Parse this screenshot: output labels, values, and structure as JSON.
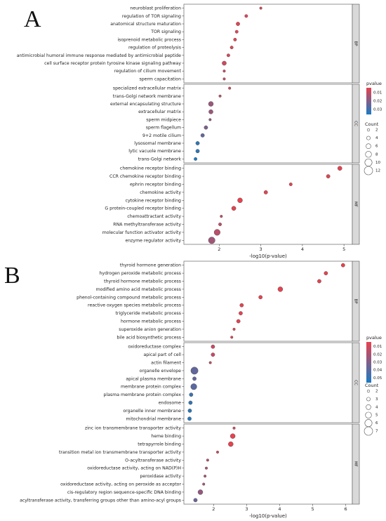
{
  "colors": {
    "low_p": "#e8414f",
    "high_p": "#1a7bc4",
    "strip_bg": "#d9d9d9",
    "dot_edge": "#555555"
  },
  "chart_data": [
    {
      "type": "scatter",
      "panel_label": "A",
      "xlabel": "-log10(p-value)",
      "x_ticks": [
        2,
        3,
        4,
        5
      ],
      "x_range": [
        1.15,
        5.2
      ],
      "legend": {
        "pvalue_title": "pvalue",
        "pvalue_ticks": [
          "0.01",
          "0.02",
          "0.03"
        ],
        "pvalue_range": [
          0.004,
          0.036
        ],
        "count_title": "Count",
        "count_values": [
          2,
          4,
          6,
          8,
          10,
          12
        ]
      },
      "facets": [
        {
          "label": "BP",
          "points": [
            {
              "term": "neuroblast proliferation",
              "x": 3.0,
              "count": 2,
              "p": 0.001
            },
            {
              "term": "regulation of TOR signaling",
              "x": 2.65,
              "count": 3,
              "p": 0.002
            },
            {
              "term": "anatomical structure maturation",
              "x": 2.45,
              "count": 4,
              "p": 0.004
            },
            {
              "term": "TOR signaling",
              "x": 2.42,
              "count": 3,
              "p": 0.004
            },
            {
              "term": "isoprenoid metabolic process",
              "x": 2.38,
              "count": 3,
              "p": 0.004
            },
            {
              "term": "regulation of proteolysis",
              "x": 2.3,
              "count": 3,
              "p": 0.005
            },
            {
              "term": "antimicrobial humoral immune response mediated by antimicrobial peptide",
              "x": 2.22,
              "count": 3,
              "p": 0.006
            },
            {
              "term": "cell surface receptor protein tyrosine kinase signaling pathway",
              "x": 2.12,
              "count": 5,
              "p": 0.0075
            },
            {
              "term": "regulation of cilium movement",
              "x": 2.12,
              "count": 2,
              "p": 0.0075
            },
            {
              "term": "sperm capacitation",
              "x": 2.12,
              "count": 2,
              "p": 0.0075
            }
          ]
        },
        {
          "label": "CC",
          "points": [
            {
              "term": "specialized extracellular matrix",
              "x": 2.25,
              "count": 2,
              "p": 0.0055
            },
            {
              "term": "trans-Golgi network membrane",
              "x": 2.02,
              "count": 2,
              "p": 0.0095
            },
            {
              "term": "external encapsulating structure",
              "x": 1.8,
              "count": 6,
              "p": 0.016
            },
            {
              "term": "extracellular matrix",
              "x": 1.8,
              "count": 5,
              "p": 0.016
            },
            {
              "term": "sperm midpiece",
              "x": 1.78,
              "count": 2,
              "p": 0.017
            },
            {
              "term": "sperm flagellum",
              "x": 1.68,
              "count": 4,
              "p": 0.021
            },
            {
              "term": "9+2 motile cilium",
              "x": 1.6,
              "count": 4,
              "p": 0.025
            },
            {
              "term": "lysosomal membrane",
              "x": 1.48,
              "count": 4,
              "p": 0.033
            },
            {
              "term": "lytic vacuole membrane",
              "x": 1.48,
              "count": 4,
              "p": 0.033
            },
            {
              "term": "trans-Golgi network",
              "x": 1.43,
              "count": 3,
              "p": 0.037
            }
          ]
        },
        {
          "label": "MF",
          "points": [
            {
              "term": "chemokine receptor binding",
              "x": 4.9,
              "count": 5,
              "p": 1e-05
            },
            {
              "term": "CCR chemokine receptor binding",
              "x": 4.62,
              "count": 4,
              "p": 2e-05
            },
            {
              "term": "ephrin receptor binding",
              "x": 3.72,
              "count": 3,
              "p": 0.0002
            },
            {
              "term": "chemokine activity",
              "x": 3.12,
              "count": 4,
              "p": 0.0008
            },
            {
              "term": "cytokine receptor binding",
              "x": 2.5,
              "count": 6,
              "p": 0.003
            },
            {
              "term": "G protein-coupled receptor binding",
              "x": 2.35,
              "count": 5,
              "p": 0.0045
            },
            {
              "term": "chemoattractant activity",
              "x": 2.05,
              "count": 2,
              "p": 0.009
            },
            {
              "term": "RNA methyltransferase activity",
              "x": 2.02,
              "count": 3,
              "p": 0.0095
            },
            {
              "term": "molecular function activator activity",
              "x": 1.95,
              "count": 8,
              "p": 0.011
            },
            {
              "term": "enzyme regulator activity",
              "x": 1.82,
              "count": 9,
              "p": 0.015
            }
          ]
        }
      ]
    },
    {
      "type": "scatter",
      "panel_label": "B",
      "xlabel": "-log10(p-value)",
      "x_ticks": [
        2,
        3,
        4,
        5,
        6
      ],
      "x_range": [
        1.1,
        6.2
      ],
      "legend": {
        "pvalue_title": "pvalue",
        "pvalue_ticks": [
          "0.01",
          "0.02",
          "0.03",
          "0.04",
          "0.05"
        ],
        "pvalue_range": [
          0.004,
          0.056
        ],
        "count_title": "Count",
        "count_values": [
          2,
          3,
          4,
          5,
          6,
          7
        ]
      },
      "facets": [
        {
          "label": "BP",
          "points": [
            {
              "term": "thyroid hormone generation",
              "x": 5.92,
              "count": 3,
              "p": 1e-06
            },
            {
              "term": "hydrogen peroxide metabolic process",
              "x": 5.4,
              "count": 3,
              "p": 4e-06
            },
            {
              "term": "thyroid hormone metabolic process",
              "x": 5.2,
              "count": 3,
              "p": 6e-06
            },
            {
              "term": "modified amino acid metabolic process",
              "x": 4.02,
              "count": 4,
              "p": 0.0001
            },
            {
              "term": "phenol-containing compound metabolic process",
              "x": 3.42,
              "count": 3,
              "p": 0.0004
            },
            {
              "term": "reactive oxygen species metabolic process",
              "x": 2.85,
              "count": 3,
              "p": 0.0014
            },
            {
              "term": "triglyceride metabolic process",
              "x": 2.82,
              "count": 3,
              "p": 0.0015
            },
            {
              "term": "hormone metabolic process",
              "x": 2.75,
              "count": 3,
              "p": 0.0018
            },
            {
              "term": "superoxide anion generation",
              "x": 2.62,
              "count": 2,
              "p": 0.0024
            },
            {
              "term": "bile acid biosynthetic process",
              "x": 2.55,
              "count": 2,
              "p": 0.0028
            }
          ]
        },
        {
          "label": "CC",
          "points": [
            {
              "term": "oxidoreductase complex",
              "x": 1.98,
              "count": 3,
              "p": 0.0105
            },
            {
              "term": "apical part of cell",
              "x": 1.98,
              "count": 3,
              "p": 0.0105
            },
            {
              "term": "actin filament",
              "x": 1.9,
              "count": 2,
              "p": 0.0125
            },
            {
              "term": "organelle envelope",
              "x": 1.42,
              "count": 6,
              "p": 0.038
            },
            {
              "term": "apical plasma membrane",
              "x": 1.42,
              "count": 3,
              "p": 0.038
            },
            {
              "term": "membrane protein complex",
              "x": 1.4,
              "count": 5,
              "p": 0.04
            },
            {
              "term": "plasma membrane protein complex",
              "x": 1.32,
              "count": 3,
              "p": 0.048
            },
            {
              "term": "endosome",
              "x": 1.3,
              "count": 3,
              "p": 0.05
            },
            {
              "term": "organelle inner membrane",
              "x": 1.28,
              "count": 3,
              "p": 0.052
            },
            {
              "term": "mitochondrial membrane",
              "x": 1.27,
              "count": 3,
              "p": 0.054
            }
          ]
        },
        {
          "label": "MF",
          "points": [
            {
              "term": "zinc ion transmembrane transporter activity",
              "x": 2.62,
              "count": 2,
              "p": 0.0024
            },
            {
              "term": "heme binding",
              "x": 2.58,
              "count": 4,
              "p": 0.0026
            },
            {
              "term": "tetrapyrrole binding",
              "x": 2.52,
              "count": 4,
              "p": 0.003
            },
            {
              "term": "transition metal ion transmembrane transporter activity",
              "x": 2.12,
              "count": 2,
              "p": 0.0076
            },
            {
              "term": "O-acyltransferase activity",
              "x": 1.82,
              "count": 2,
              "p": 0.015
            },
            {
              "term": "oxidoreductase activity, acting on NAD(P)H",
              "x": 1.78,
              "count": 2,
              "p": 0.0165
            },
            {
              "term": "peroxidase activity",
              "x": 1.74,
              "count": 2,
              "p": 0.018
            },
            {
              "term": "oxidoreductase activity, acting on peroxide as acceptor",
              "x": 1.7,
              "count": 2,
              "p": 0.02
            },
            {
              "term": "cis-regulatory region sequence-specific DNA binding",
              "x": 1.6,
              "count": 4,
              "p": 0.025
            },
            {
              "term": "acyltransferase activity, transferring groups other than amino-acyl groups",
              "x": 1.45,
              "count": 3,
              "p": 0.035
            }
          ]
        }
      ]
    }
  ]
}
